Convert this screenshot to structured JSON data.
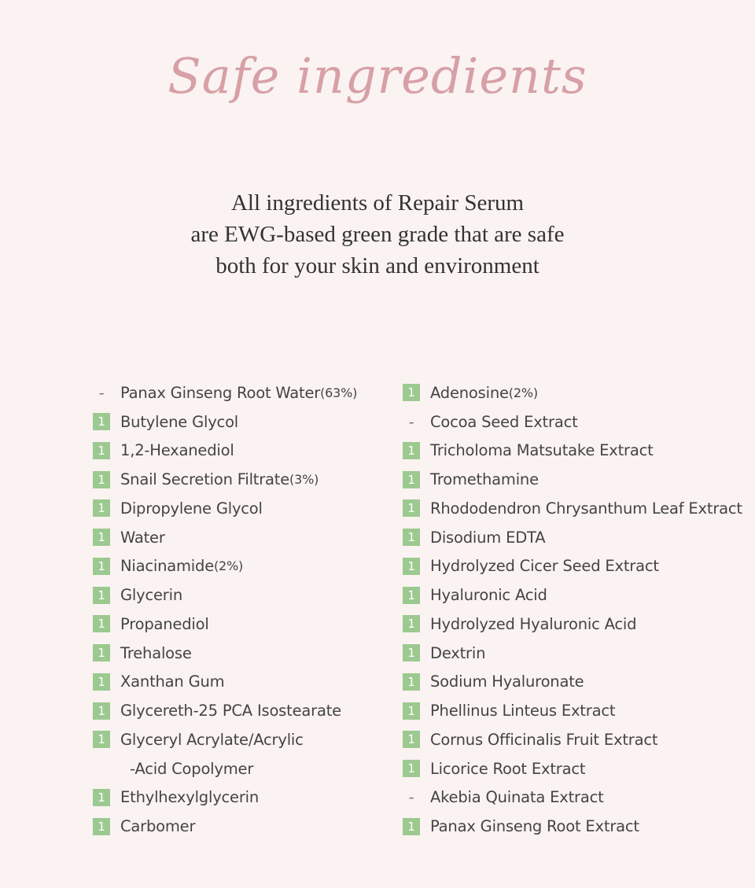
{
  "title": "Safe ingredients",
  "headline": [
    "All ingredients of Repair Serum",
    "are EWG-based green grade that are safe",
    "both for your skin and environment"
  ],
  "colors": {
    "background": "#faf3f1",
    "title": "#d7a0a6",
    "badge": "#9cc990"
  },
  "left_column": [
    {
      "grade": "-",
      "name": "Panax Ginseng Root Water",
      "note": "(63%)"
    },
    {
      "grade": "1",
      "name": "Butylene Glycol"
    },
    {
      "grade": "1",
      "name": "1,2-Hexanediol"
    },
    {
      "grade": "1",
      "name": "Snail Secretion Filtrate",
      "note": "(3%)"
    },
    {
      "grade": "1",
      "name": "Dipropylene Glycol"
    },
    {
      "grade": "1",
      "name": "Water"
    },
    {
      "grade": "1",
      "name": "Niacinamide",
      "note": "(2%)"
    },
    {
      "grade": "1",
      "name": "Glycerin"
    },
    {
      "grade": "1",
      "name": "Propanediol"
    },
    {
      "grade": "1",
      "name": "Trehalose"
    },
    {
      "grade": "1",
      "name": "Xanthan Gum"
    },
    {
      "grade": "1",
      "name": "Glycereth-25 PCA Isostearate"
    },
    {
      "grade": "1",
      "name": "Glyceryl Acrylate/Acrylic",
      "continuation": "-Acid Copolymer"
    },
    {
      "grade": "1",
      "name": "Ethylhexylglycerin"
    },
    {
      "grade": "1",
      "name": "Carbomer"
    }
  ],
  "right_column": [
    {
      "grade": "1",
      "name": "Adenosine",
      "note": "(2%)"
    },
    {
      "grade": "-",
      "name": "Cocoa Seed Extract"
    },
    {
      "grade": "1",
      "name": "Tricholoma Matsutake Extract"
    },
    {
      "grade": "1",
      "name": "Tromethamine"
    },
    {
      "grade": "1",
      "name": "Rhododendron Chrysanthum Leaf Extract"
    },
    {
      "grade": "1",
      "name": "Disodium EDTA"
    },
    {
      "grade": "1",
      "name": "Hydrolyzed Cicer Seed Extract"
    },
    {
      "grade": "1",
      "name": "Hyaluronic Acid"
    },
    {
      "grade": "1",
      "name": "Hydrolyzed Hyaluronic Acid"
    },
    {
      "grade": "1",
      "name": "Dextrin"
    },
    {
      "grade": "1",
      "name": "Sodium Hyaluronate"
    },
    {
      "grade": "1",
      "name": "Phellinus Linteus Extract"
    },
    {
      "grade": "1",
      "name": "Cornus Officinalis Fruit Extract"
    },
    {
      "grade": "1",
      "name": "Licorice Root Extract"
    },
    {
      "grade": "-",
      "name": "Akebia Quinata Extract"
    },
    {
      "grade": "1",
      "name": "Panax Ginseng Root Extract"
    }
  ]
}
